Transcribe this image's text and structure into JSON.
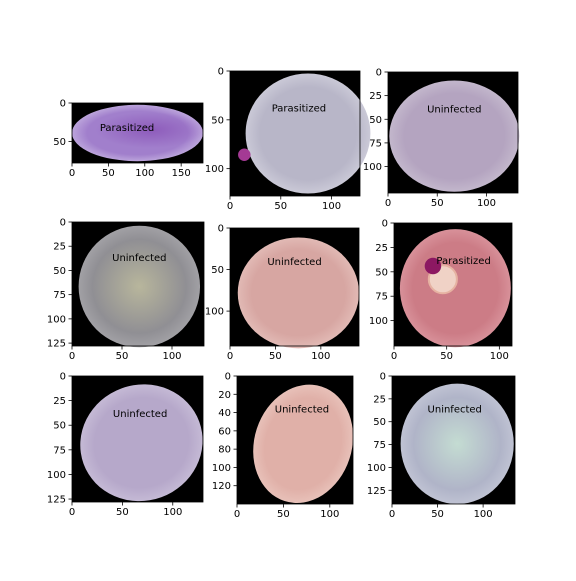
{
  "figure": {
    "layout": "3x3 grid of cell images with pixel axes",
    "background": "#ffffff",
    "image_background": "#000000"
  },
  "chart_data": [
    {
      "type": "image",
      "label": "Parasitized",
      "xlim": [
        0,
        180
      ],
      "ylim": [
        0,
        78
      ],
      "xticks": [
        0,
        50,
        100,
        150
      ],
      "yticks": [
        0,
        50
      ],
      "cell": {
        "color": "#a17fcc",
        "edge": "#c7b4e2",
        "shape": "wide-oval"
      },
      "stain": {
        "color": "#8a55b8",
        "shape": "diffuse"
      }
    },
    {
      "type": "image",
      "label": "Parasitized",
      "xlim": [
        0,
        128
      ],
      "ylim": [
        0,
        128
      ],
      "xticks": [
        0,
        50,
        100
      ],
      "yticks": [
        0,
        50,
        100
      ],
      "cell": {
        "color": "#b8b6c8",
        "edge": "#d2d1dd",
        "shape": "round"
      },
      "stain": {
        "color": "#a43a94",
        "shape": "dot"
      }
    },
    {
      "type": "image",
      "label": "Uninfected",
      "xlim": [
        0,
        132
      ],
      "ylim": [
        0,
        128
      ],
      "xticks": [
        0,
        50,
        100
      ],
      "yticks": [
        0,
        25,
        50,
        75,
        100
      ],
      "cell": {
        "color": "#b4a4c0",
        "edge": "#c9bfd1",
        "shape": "round"
      }
    },
    {
      "type": "image",
      "label": "Uninfected",
      "xlim": [
        0,
        132
      ],
      "ylim": [
        0,
        128
      ],
      "xticks": [
        0,
        50,
        100
      ],
      "yticks": [
        0,
        25,
        50,
        75,
        100,
        125
      ],
      "cell": {
        "color": "#908f94",
        "edge": "#a9a8ac",
        "center": "#b8b69c",
        "shape": "round"
      }
    },
    {
      "type": "image",
      "label": "Uninfected",
      "xlim": [
        0,
        142
      ],
      "ylim": [
        0,
        142
      ],
      "xticks": [
        0,
        50,
        100
      ],
      "yticks": [
        0,
        50,
        100
      ],
      "cell": {
        "color": "#d7a6a2",
        "edge": "#e6c2bd",
        "shape": "round"
      }
    },
    {
      "type": "image",
      "label": "Parasitized",
      "xlim": [
        0,
        112
      ],
      "ylim": [
        0,
        126
      ],
      "xticks": [
        0,
        50,
        100
      ],
      "yticks": [
        0,
        25,
        50,
        75,
        100
      ],
      "cell": {
        "color": "#cc7c86",
        "edge": "#dd9aa2",
        "shape": "round"
      },
      "stain": {
        "color": "#8c1862",
        "shape": "dot-with-ring"
      }
    },
    {
      "type": "image",
      "label": "Uninfected",
      "xlim": [
        0,
        130
      ],
      "ylim": [
        0,
        128
      ],
      "xticks": [
        0,
        50,
        100
      ],
      "yticks": [
        0,
        25,
        50,
        75,
        100,
        125
      ],
      "cell": {
        "color": "#b6a8ca",
        "edge": "#cbc1da",
        "shape": "tilted-oval"
      }
    },
    {
      "type": "image",
      "label": "Uninfected",
      "xlim": [
        0,
        125
      ],
      "ylim": [
        0,
        140
      ],
      "xticks": [
        0,
        50,
        100
      ],
      "yticks": [
        0,
        20,
        40,
        60,
        80,
        100,
        120
      ],
      "cell": {
        "color": "#e0b0a8",
        "edge": "#ebc8c0",
        "shape": "blob"
      }
    },
    {
      "type": "image",
      "label": "Uninfected",
      "xlim": [
        0,
        135
      ],
      "ylim": [
        0,
        140
      ],
      "xticks": [
        0,
        50,
        100
      ],
      "yticks": [
        0,
        25,
        50,
        75,
        100,
        125
      ],
      "cell": {
        "color": "#b0b4c8",
        "edge": "#c6c9d8",
        "center": "#c4dcd2",
        "shape": "round"
      }
    }
  ]
}
